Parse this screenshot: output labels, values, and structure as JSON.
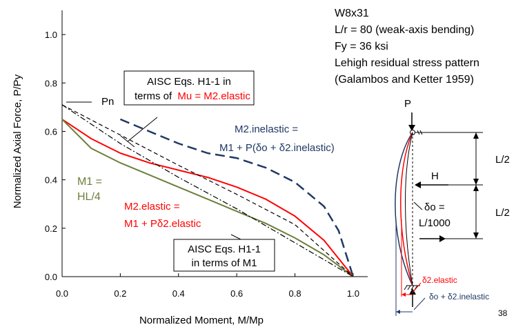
{
  "chart_data": {
    "type": "line",
    "xlabel": "Normalized Moment, M/Mp",
    "ylabel": "Normalized Axial Force, P/Py",
    "xlim": [
      0,
      1.05
    ],
    "ylim": [
      0,
      1.1
    ],
    "x_ticks": [
      "0.0",
      "0.2",
      "0.4",
      "0.6",
      "0.8",
      "1.0"
    ],
    "y_ticks": [
      "0.0",
      "0.2",
      "0.4",
      "0.6",
      "0.8",
      "1.0"
    ],
    "grid": false,
    "series": [
      {
        "key": "inelastic",
        "color": "#1f3864",
        "dash": "long",
        "x": [
          0.2,
          0.3,
          0.4,
          0.5,
          0.6,
          0.7,
          0.8,
          0.9,
          0.95,
          1.0
        ],
        "y": [
          0.65,
          0.6,
          0.55,
          0.51,
          0.49,
          0.45,
          0.39,
          0.29,
          0.19,
          0.0
        ]
      },
      {
        "key": "elastic",
        "color": "#ff0000",
        "dash": "solid",
        "x": [
          0.0,
          0.1,
          0.2,
          0.3,
          0.4,
          0.5,
          0.6,
          0.7,
          0.8,
          0.9,
          1.0
        ],
        "y": [
          0.65,
          0.57,
          0.51,
          0.47,
          0.44,
          0.41,
          0.37,
          0.32,
          0.25,
          0.15,
          0.0
        ]
      },
      {
        "key": "m1",
        "color": "#6b7f3a",
        "dash": "solid",
        "x": [
          0.0,
          0.1,
          0.2,
          0.3,
          0.4,
          0.5,
          0.6,
          0.7,
          0.8,
          0.9,
          1.0
        ],
        "y": [
          0.65,
          0.53,
          0.47,
          0.42,
          0.37,
          0.32,
          0.27,
          0.22,
          0.16,
          0.09,
          0.0
        ]
      },
      {
        "key": "aisc_m2",
        "color": "#000000",
        "dash": "dash",
        "x": [
          0.0,
          0.2,
          0.4,
          0.6,
          0.8,
          1.0
        ],
        "y": [
          0.71,
          0.585,
          0.46,
          0.34,
          0.215,
          0.0
        ]
      },
      {
        "key": "aisc_m1",
        "color": "#000000",
        "dash": "dashdot",
        "x": [
          0.0,
          0.2,
          0.4,
          0.6,
          0.8,
          1.0
        ],
        "y": [
          0.71,
          0.55,
          0.41,
          0.28,
          0.14,
          0.0
        ]
      }
    ],
    "annotations": {
      "pn": "Pn",
      "aisc_m2_lines": [
        "AISC Eqs. H1-1 in",
        "terms of",
        "Mu = M2.elastic"
      ],
      "inelastic_lines": [
        "M2.inelastic =",
        "M1 + P(δo + δ2.inelastic)"
      ],
      "m1_lines": [
        "M1 =",
        "HL/4"
      ],
      "elastic_lines": [
        "M2.elastic =",
        "M1 + Pδ2.elastic"
      ],
      "aisc_m1_lines": [
        "AISC Eqs. H1-1",
        "in terms of M1"
      ]
    }
  },
  "info": {
    "section": "W8x31",
    "slenderness": "L/r = 80 (weak-axis bending)",
    "yield": "Fy = 36 ksi",
    "residual1": "Lehigh residual stress pattern",
    "residual2": "(Galambos and Ketter 1959)"
  },
  "schematic": {
    "p": "P",
    "h": "H",
    "half_top": "L/2",
    "half_bottom": "L/2",
    "delta0_1": "δo =",
    "delta0_2": "L/1000",
    "delta2_elastic": "δ2.elastic",
    "delta_total": "δo + δ2.inelastic"
  },
  "colors": {
    "red": "#ff0000",
    "navy": "#1f3864",
    "olive": "#6b7f3a"
  },
  "page_number": "38"
}
